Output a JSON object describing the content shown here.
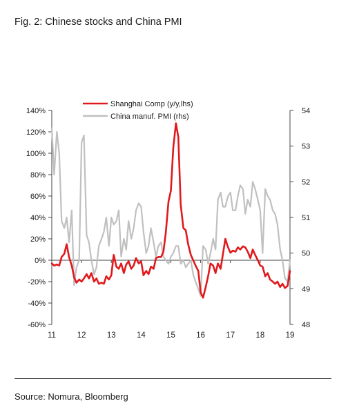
{
  "figure": {
    "title": "Fig. 2: Chinese stocks and China PMI",
    "source": "Source: Nomura, Bloomberg"
  },
  "chart_data": {
    "type": "line",
    "x_tick_labels": [
      "11",
      "12",
      "13",
      "14",
      "15",
      "16",
      "17",
      "18",
      "19"
    ],
    "xlim": [
      2011.0,
      2019.0
    ],
    "y_left": {
      "ticks": [
        "140%",
        "120%",
        "100%",
        "80%",
        "60%",
        "40%",
        "20%",
        "0%",
        "-20%",
        "-40%",
        "-60%"
      ],
      "ylim": [
        -60,
        140
      ],
      "unit": "%"
    },
    "y_right": {
      "ticks": [
        "54",
        "53",
        "52",
        "51",
        "50",
        "49",
        "48"
      ],
      "ylim": [
        48,
        54
      ]
    },
    "legend_position": "top-center",
    "grid": false,
    "series": [
      {
        "name": "Shanghai Comp (y/y,lhs)",
        "axis": "left",
        "color": "#e0191c",
        "x": [
          2011.0,
          2011.08,
          2011.17,
          2011.25,
          2011.33,
          2011.42,
          2011.5,
          2011.58,
          2011.67,
          2011.75,
          2011.83,
          2011.92,
          2012.0,
          2012.08,
          2012.17,
          2012.25,
          2012.33,
          2012.42,
          2012.5,
          2012.58,
          2012.67,
          2012.75,
          2012.83,
          2012.92,
          2013.0,
          2013.08,
          2013.17,
          2013.25,
          2013.33,
          2013.42,
          2013.5,
          2013.58,
          2013.67,
          2013.75,
          2013.83,
          2013.92,
          2014.0,
          2014.08,
          2014.17,
          2014.25,
          2014.33,
          2014.42,
          2014.5,
          2014.58,
          2014.67,
          2014.75,
          2014.83,
          2014.92,
          2015.0,
          2015.08,
          2015.17,
          2015.25,
          2015.33,
          2015.42,
          2015.5,
          2015.58,
          2015.67,
          2015.75,
          2015.83,
          2015.92,
          2016.0,
          2016.08,
          2016.17,
          2016.25,
          2016.33,
          2016.42,
          2016.5,
          2016.58,
          2016.67,
          2016.75,
          2016.83,
          2016.92,
          2017.0,
          2017.08,
          2017.17,
          2017.25,
          2017.33,
          2017.42,
          2017.5,
          2017.58,
          2017.67,
          2017.75,
          2017.83,
          2017.92,
          2018.0,
          2018.08,
          2018.17,
          2018.25,
          2018.33,
          2018.42,
          2018.5,
          2018.58,
          2018.67,
          2018.75,
          2018.83,
          2018.92,
          2019.0
        ],
        "values": [
          -3,
          -5,
          -4,
          -5,
          3,
          6,
          15,
          3,
          -5,
          -16,
          -21,
          -18,
          -20,
          -17,
          -13,
          -17,
          -12,
          -20,
          -17,
          -22,
          -21,
          -22,
          -15,
          -18,
          -14,
          5,
          -6,
          -8,
          -3,
          -12,
          -4,
          -1,
          -8,
          -5,
          2,
          -3,
          -1,
          -14,
          -10,
          -13,
          -6,
          -8,
          2,
          3,
          3,
          8,
          26,
          55,
          65,
          105,
          128,
          115,
          52,
          30,
          28,
          15,
          5,
          0,
          -5,
          -10,
          -30,
          -35,
          -25,
          -15,
          -3,
          -5,
          -12,
          -3,
          -8,
          6,
          20,
          12,
          7,
          9,
          8,
          12,
          10,
          13,
          12,
          8,
          2,
          10,
          5,
          0,
          -5,
          -6,
          -15,
          -12,
          -18,
          -20,
          -22,
          -20,
          -25,
          -22,
          -26,
          -24,
          -10
        ]
      },
      {
        "name": "China manuf. PMI (rhs)",
        "axis": "right",
        "color": "#c0c0c0",
        "x": [
          2011.0,
          2011.08,
          2011.17,
          2011.25,
          2011.33,
          2011.42,
          2011.5,
          2011.58,
          2011.67,
          2011.75,
          2011.83,
          2011.92,
          2012.0,
          2012.08,
          2012.17,
          2012.25,
          2012.33,
          2012.42,
          2012.5,
          2012.58,
          2012.67,
          2012.75,
          2012.83,
          2012.92,
          2013.0,
          2013.08,
          2013.17,
          2013.25,
          2013.33,
          2013.42,
          2013.5,
          2013.58,
          2013.67,
          2013.75,
          2013.83,
          2013.92,
          2014.0,
          2014.08,
          2014.17,
          2014.25,
          2014.33,
          2014.42,
          2014.5,
          2014.58,
          2014.67,
          2014.75,
          2014.83,
          2014.92,
          2015.0,
          2015.08,
          2015.17,
          2015.25,
          2015.33,
          2015.42,
          2015.5,
          2015.58,
          2015.67,
          2015.75,
          2015.83,
          2015.92,
          2016.0,
          2016.08,
          2016.17,
          2016.25,
          2016.33,
          2016.42,
          2016.5,
          2016.58,
          2016.67,
          2016.75,
          2016.83,
          2016.92,
          2017.0,
          2017.08,
          2017.17,
          2017.25,
          2017.33,
          2017.42,
          2017.5,
          2017.58,
          2017.67,
          2017.75,
          2017.83,
          2017.92,
          2018.0,
          2018.08,
          2018.17,
          2018.25,
          2018.33,
          2018.42,
          2018.5,
          2018.58,
          2018.67,
          2018.75,
          2018.83,
          2018.92,
          2019.0
        ],
        "values": [
          53.5,
          52.2,
          53.4,
          52.8,
          50.9,
          50.7,
          51.0,
          50.3,
          51.2,
          49.1,
          49.6,
          49.8,
          53.1,
          53.3,
          50.5,
          50.3,
          49.8,
          49.4,
          49.6,
          50.2,
          50.4,
          50.6,
          51.0,
          50.2,
          51.0,
          50.8,
          50.9,
          51.2,
          49.9,
          50.4,
          50.1,
          50.9,
          50.4,
          50.7,
          51.2,
          51.4,
          51.3,
          50.6,
          50.0,
          50.2,
          50.7,
          50.3,
          49.9,
          50.2,
          50.3,
          49.9,
          49.8,
          49.7,
          49.9,
          50.0,
          50.2,
          50.2,
          49.7,
          49.8,
          49.6,
          49.7,
          49.8,
          49.4,
          49.2,
          49.0,
          48.8,
          50.2,
          50.1,
          49.7,
          50.0,
          50.4,
          50.1,
          51.5,
          51.7,
          51.3,
          51.3,
          51.6,
          51.7,
          51.2,
          51.2,
          51.6,
          51.9,
          51.8,
          51.1,
          51.5,
          51.3,
          52.0,
          51.8,
          51.5,
          51.2,
          50.0,
          51.8,
          51.6,
          51.5,
          51.2,
          51.1,
          50.8,
          50.1,
          49.8,
          49.3,
          49.2,
          49.8
        ]
      }
    ]
  }
}
